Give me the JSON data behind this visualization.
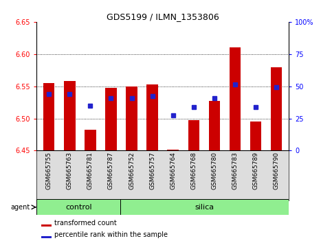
{
  "title": "GDS5199 / ILMN_1353806",
  "samples": [
    "GSM665755",
    "GSM665763",
    "GSM665781",
    "GSM665787",
    "GSM665752",
    "GSM665757",
    "GSM665764",
    "GSM665768",
    "GSM665780",
    "GSM665783",
    "GSM665789",
    "GSM665790"
  ],
  "bar_values": [
    6.555,
    6.558,
    6.483,
    6.548,
    6.55,
    6.553,
    6.452,
    6.497,
    6.527,
    6.61,
    6.495,
    6.58
  ],
  "blue_dots_y": [
    6.538,
    6.538,
    6.52,
    6.532,
    6.532,
    6.535,
    6.505,
    6.518,
    6.532,
    6.553,
    6.518,
    6.549
  ],
  "ymin": 6.45,
  "ymax": 6.65,
  "yticks": [
    6.45,
    6.5,
    6.55,
    6.6,
    6.65
  ],
  "grid_lines": [
    6.5,
    6.55,
    6.6
  ],
  "bar_color": "#cc0000",
  "dot_color": "#2222cc",
  "bar_bottom": 6.45,
  "n_control": 4,
  "n_silica": 8,
  "group_color": "#90EE90",
  "legend_bar_label": "transformed count",
  "legend_dot_label": "percentile rank within the sample",
  "right_ytick_pcts": [
    0,
    25,
    50,
    75,
    100
  ],
  "right_yticklabels": [
    "0",
    "25",
    "50",
    "75",
    "100%"
  ],
  "figw": 4.83,
  "figh": 3.54
}
